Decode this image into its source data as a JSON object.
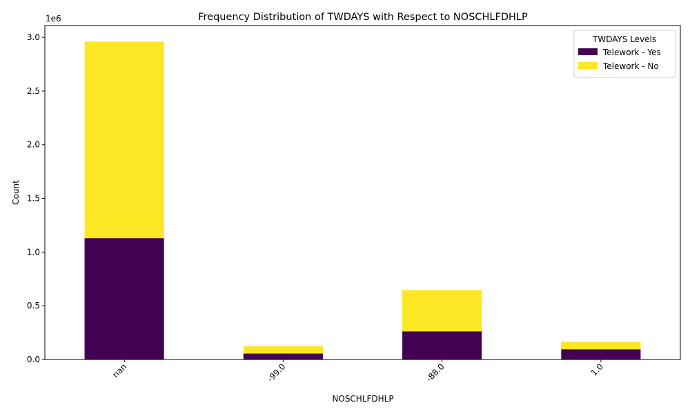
{
  "chart_data": {
    "type": "bar",
    "stacked": true,
    "title": "Frequency Distribution of TWDAYS with Respect to NOSCHLFDHLP",
    "xlabel": "NOSCHLFDHLP",
    "ylabel": "Count",
    "y_offset_label": "1e6",
    "categories": [
      "nan",
      "-99.0",
      "-88.0",
      "1.0"
    ],
    "series": [
      {
        "name": "Telework - Yes",
        "color": "#440154",
        "values": [
          1130000,
          55000,
          262000,
          95000
        ]
      },
      {
        "name": "Telework - No",
        "color": "#fde725",
        "values": [
          1830000,
          70000,
          385000,
          70000
        ]
      }
    ],
    "ylim": [
      0,
      3110000
    ],
    "yticks": [
      0,
      500000,
      1000000,
      1500000,
      2000000,
      2500000,
      3000000
    ],
    "ytick_labels": [
      "0.0",
      "0.5",
      "1.0",
      "1.5",
      "2.0",
      "2.5",
      "3.0"
    ],
    "legend": {
      "title": "TWDAYS Levels",
      "placement": "top-right"
    },
    "grid": false
  }
}
